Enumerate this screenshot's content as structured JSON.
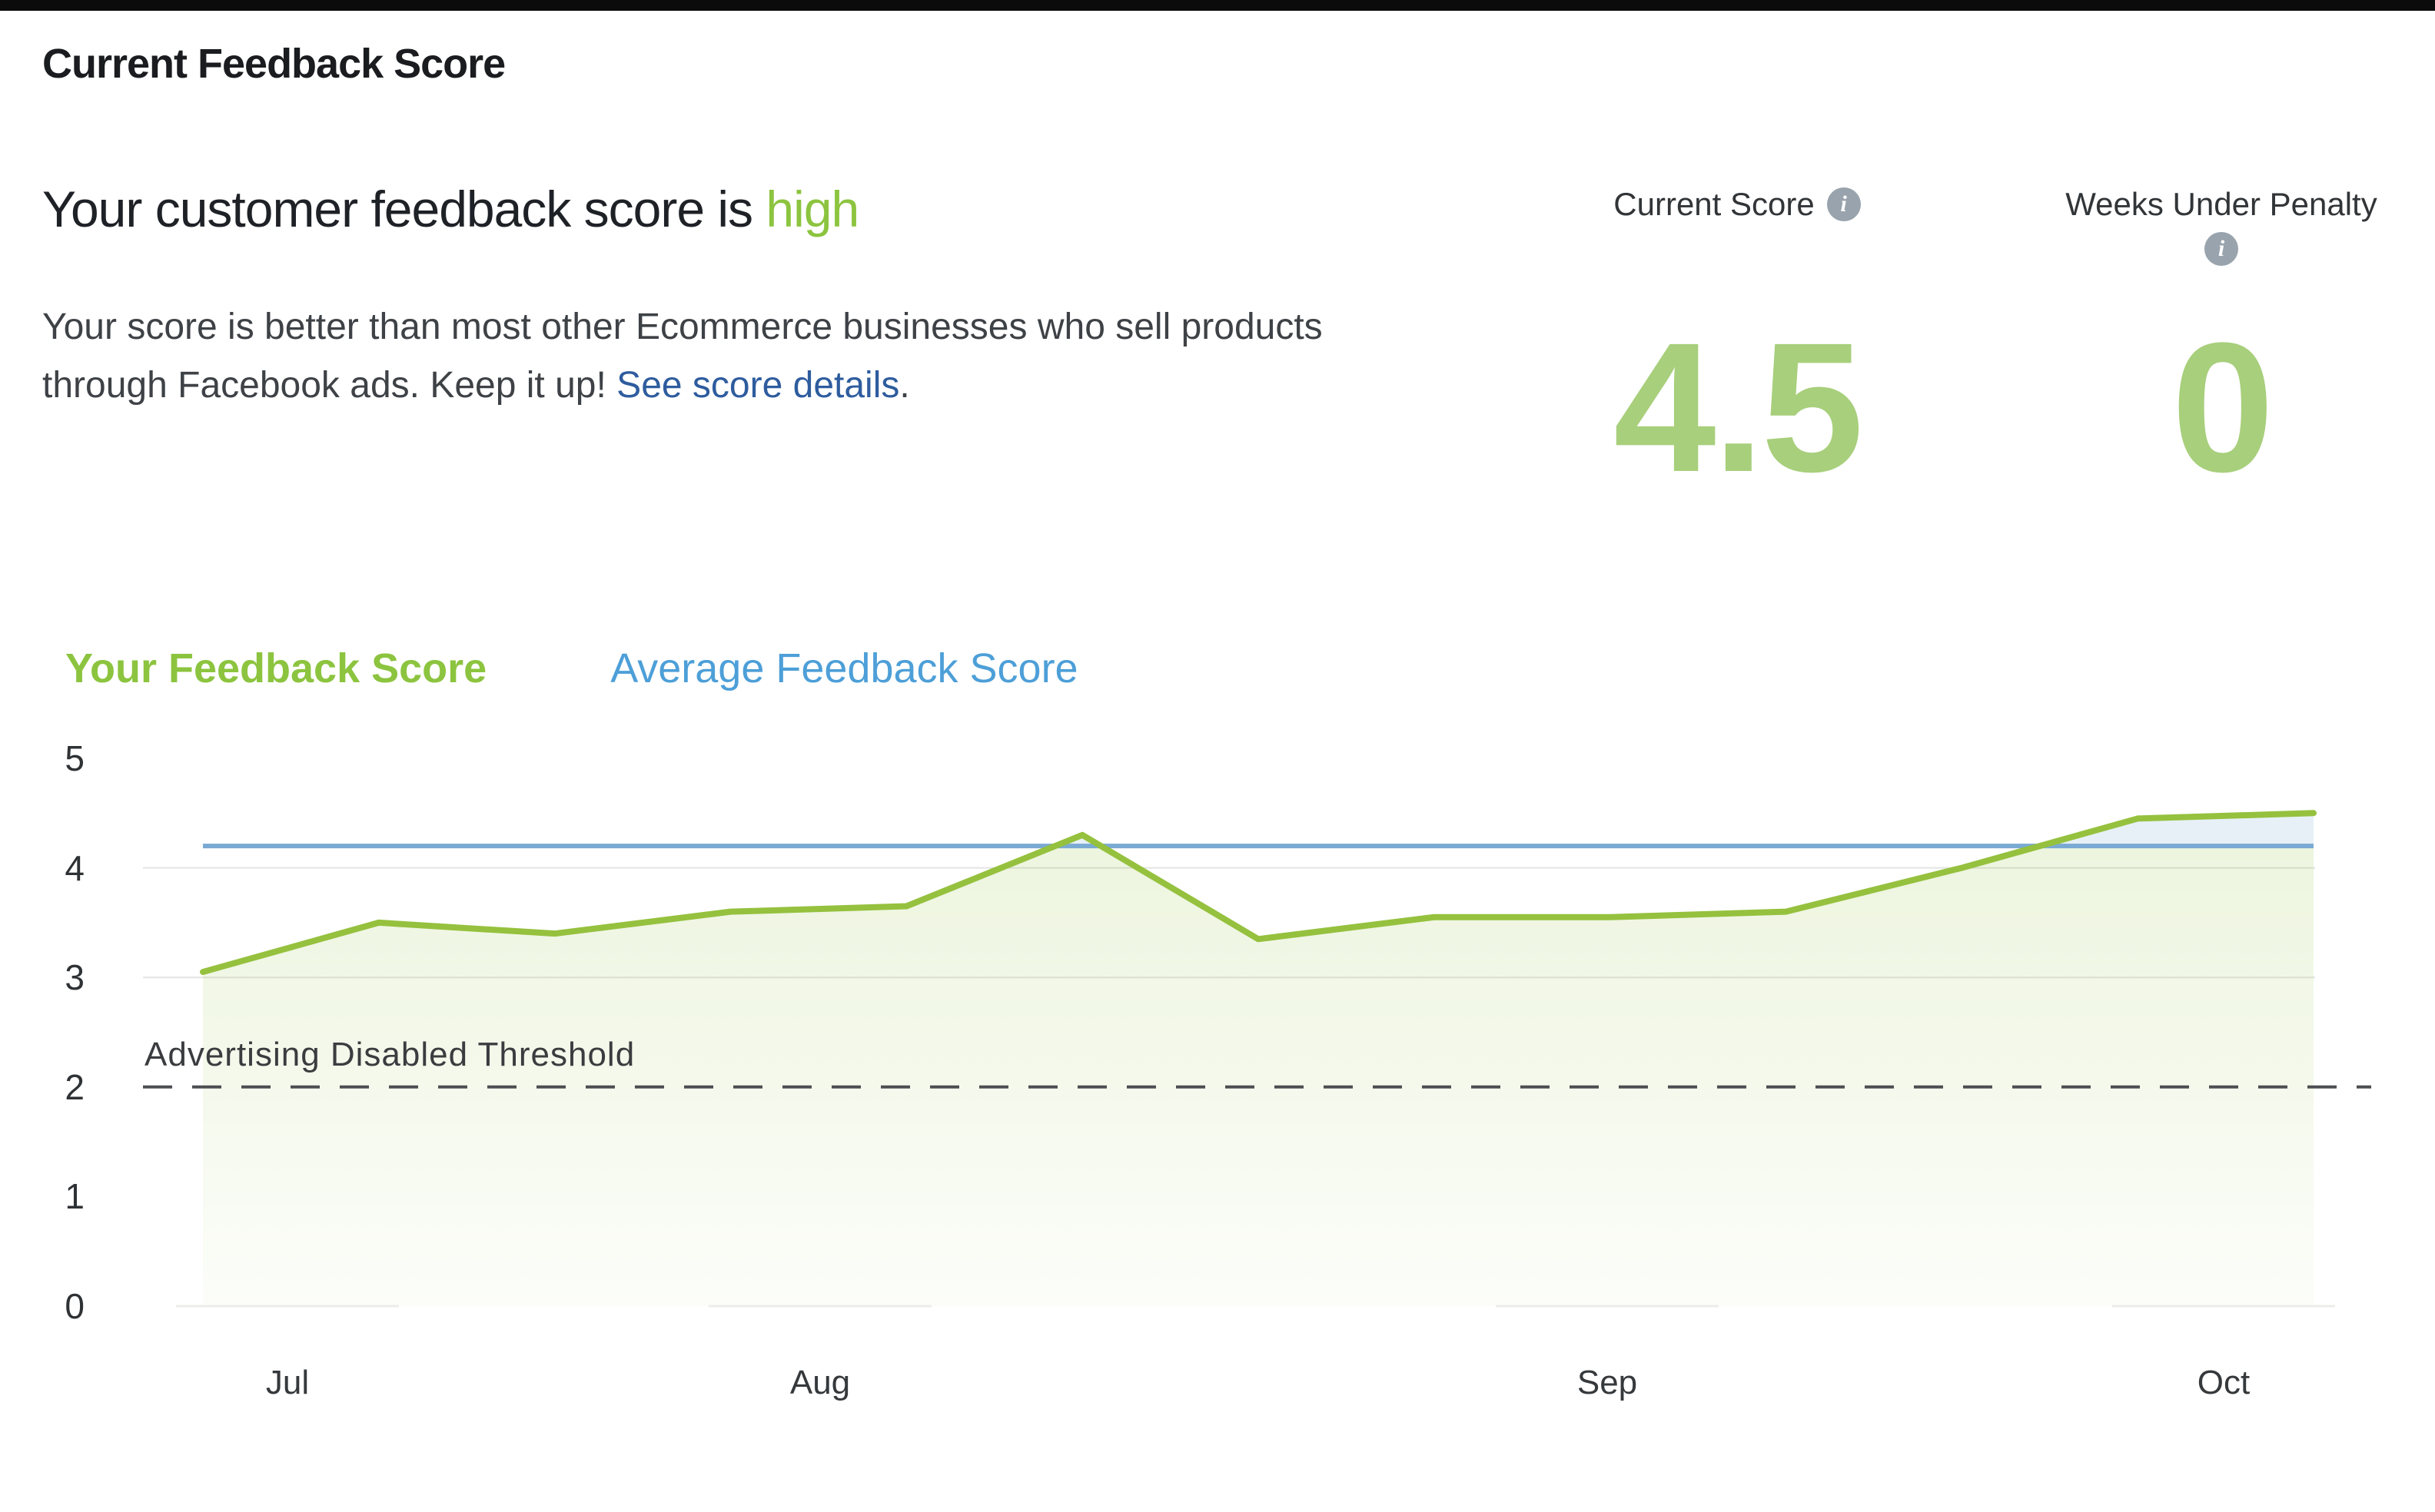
{
  "page": {
    "title": "Current Feedback Score"
  },
  "hero": {
    "heading_prefix": "Your customer feedback score is ",
    "heading_highlight": "high",
    "body_line1": "Your score is better than most other Ecommerce businesses who sell products",
    "body_line2_prefix": "through Facebook ads. Keep it up! ",
    "body_link": "See score details",
    "body_suffix": "."
  },
  "stats": {
    "current_score": {
      "label": "Current Score",
      "value": "4.5",
      "info_icon": "info-icon"
    },
    "weeks_under_penalty": {
      "label": "Weeks Under Penalty",
      "value": "0",
      "info_icon": "info-icon"
    }
  },
  "legend": {
    "your_score": "Your Feedback Score",
    "average_score": "Average Feedback Score"
  },
  "colors": {
    "accent_green_text": "#8cc43f",
    "number_green": "#a8cf7c",
    "line_green": "#95c13e",
    "legend_blue": "#4d9fd8",
    "line_blue": "#7aaad3",
    "between_fill_blue": "#e7f0f6",
    "link_blue": "#2e5c9e",
    "threshold_gray": "#4c4e51",
    "grid_gray": "#e3e4e4",
    "top_bar": "#0b0b0c"
  },
  "chart_data": {
    "type": "line",
    "title": "",
    "xlabel": "",
    "ylabel": "",
    "x_axis_labels": [
      "Jul",
      "Aug",
      "Sep",
      "Oct"
    ],
    "y_ticks": [
      0,
      1,
      2,
      3,
      4,
      5
    ],
    "ylim": [
      0,
      5
    ],
    "grid_values": [
      3,
      4
    ],
    "legend_position": "top",
    "series": [
      {
        "name": "Your Feedback Score",
        "color": "#95c13e",
        "values": [
          3.05,
          3.5,
          3.4,
          3.6,
          3.65,
          4.3,
          3.35,
          3.55,
          3.55,
          3.6,
          4.0,
          4.45,
          4.5
        ]
      },
      {
        "name": "Average Feedback Score",
        "color": "#7aaad3",
        "values": [
          4.2,
          4.2,
          4.2,
          4.2,
          4.2,
          4.2,
          4.2,
          4.2,
          4.2,
          4.2,
          4.2,
          4.2,
          4.2
        ]
      }
    ],
    "threshold": {
      "label": "Advertising Disabled Threshold",
      "value": 2
    }
  }
}
